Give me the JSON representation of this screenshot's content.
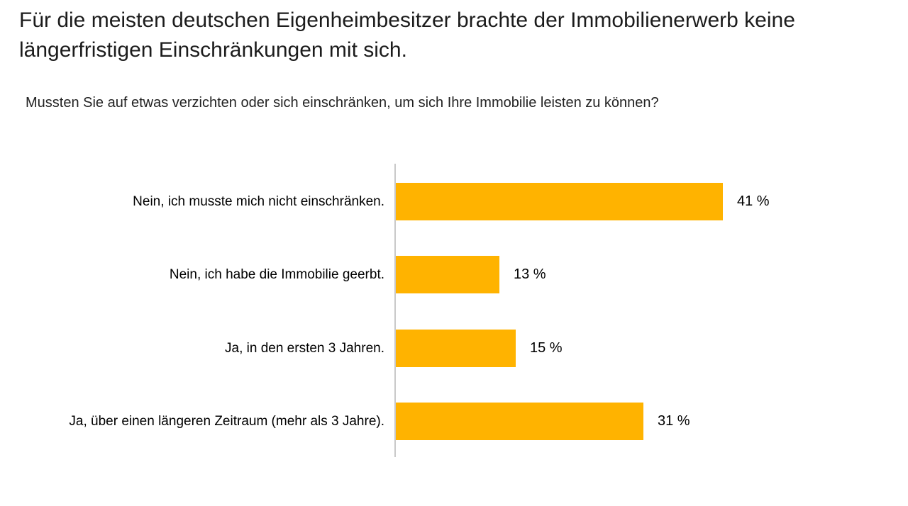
{
  "page": {
    "title": "Für die meisten deutschen Eigenheimbesitzer brachte der Immobilienerwerb keine längerfristigen Einschränkungen mit sich.",
    "subtitle": "Mussten Sie auf etwas verzichten oder sich einschränken, um sich Ihre Immobilie leisten zu können?"
  },
  "chart_data": {
    "type": "bar",
    "orientation": "horizontal",
    "categories": [
      "Nein, ich musste mich nicht einschränken.",
      "Nein, ich habe die Immobilie geerbt.",
      "Ja, in den ersten 3 Jahren.",
      "Ja, über einen längeren Zeitraum (mehr als 3 Jahre)."
    ],
    "values": [
      41,
      13,
      15,
      31
    ],
    "value_labels": [
      "41 %",
      "13 %",
      "15 %",
      "31 %"
    ],
    "unit": "%",
    "title": "",
    "xlabel": "",
    "ylabel": "",
    "legend": false,
    "grid": false,
    "bar_color": "#FFB300",
    "axis_color": "#C9C9C9",
    "text_color": "#000000"
  }
}
